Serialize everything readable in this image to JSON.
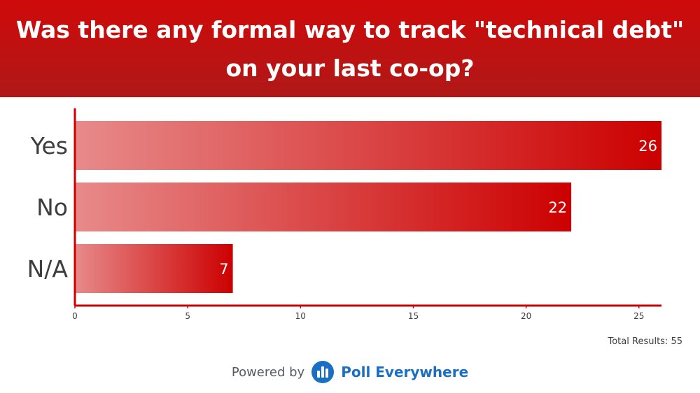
{
  "header": {
    "title": "Was there any formal way to track \"technical debt\" on your last co-op?"
  },
  "chart_data": {
    "type": "bar",
    "orientation": "horizontal",
    "title": "Was there any formal way to track \"technical debt\" on your last co-op?",
    "categories": [
      "Yes",
      "No",
      "N/A"
    ],
    "values": [
      26,
      22,
      7
    ],
    "xlim": [
      0,
      26
    ],
    "xticks": [
      "0",
      "5",
      "10",
      "15",
      "20",
      "25"
    ],
    "grid": false,
    "bar_gradient": [
      "#e88a8a",
      "#cc0000"
    ],
    "axis_color": "#cc0000"
  },
  "footer": {
    "total_results": "Total Results: 55",
    "powered_by": "Powered by",
    "brand": "Poll Everywhere",
    "logo_icon": "poll-everywhere-logo-icon",
    "brand_color": "#1a6fc4"
  }
}
